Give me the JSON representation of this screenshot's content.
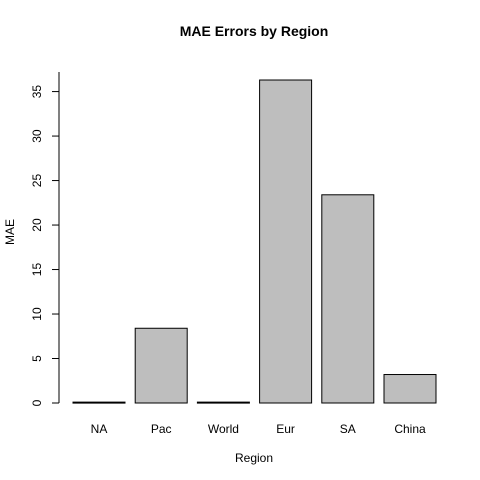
{
  "chart_data": {
    "type": "bar",
    "title": "MAE Errors by Region",
    "xlabel": "Region",
    "ylabel": "MAE",
    "categories": [
      "NA",
      "Pac",
      "World",
      "Eur",
      "SA",
      "China"
    ],
    "values": [
      0.1,
      8.4,
      0.1,
      36.3,
      23.4,
      3.2
    ],
    "ylim": [
      0,
      37.2
    ],
    "yticks": [
      "0",
      "5",
      "10",
      "15",
      "20",
      "25",
      "30",
      "35"
    ],
    "bar_color": "#bebebe",
    "grid": false,
    "legend": "none"
  }
}
